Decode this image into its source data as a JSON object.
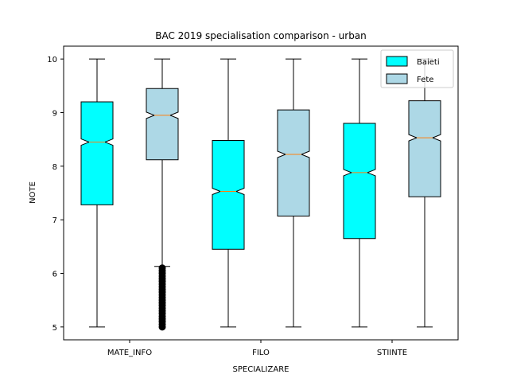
{
  "chart_data": {
    "type": "boxplot",
    "title": "BAC 2019 specialisation comparison - urban",
    "xlabel": "SPECIALIZARE",
    "ylabel": "NOTE",
    "categories": [
      "MATE_INFO",
      "FILO",
      "STIINTE"
    ],
    "ylim": [
      4.76,
      10.24
    ],
    "yticks": [
      5,
      6,
      7,
      8,
      9,
      10
    ],
    "ytick_labels": [
      "5",
      "6",
      "7",
      "8",
      "9",
      "10"
    ],
    "grid": false,
    "legend_position": "top-right",
    "notched": true,
    "series": [
      {
        "name": "Baieti",
        "color": "#00ffff",
        "boxes": [
          {
            "category": "MATE_INFO",
            "whislo": 5.0,
            "q1": 7.28,
            "med": 8.45,
            "q3": 9.2,
            "whishi": 10.0,
            "outliers": []
          },
          {
            "category": "FILO",
            "whislo": 5.0,
            "q1": 6.45,
            "med": 7.53,
            "q3": 8.48,
            "whishi": 10.0,
            "outliers": []
          },
          {
            "category": "STIINTE",
            "whislo": 5.0,
            "q1": 6.65,
            "med": 7.88,
            "q3": 8.8,
            "whishi": 10.0,
            "outliers": []
          }
        ]
      },
      {
        "name": "Fete",
        "color": "#add8e6",
        "boxes": [
          {
            "category": "MATE_INFO",
            "whislo": 6.13,
            "q1": 8.12,
            "med": 8.95,
            "q3": 9.45,
            "whishi": 10.0,
            "outliers": [
              6.1,
              6.05,
              6.0,
              5.95,
              5.9,
              5.85,
              5.8,
              5.75,
              5.7,
              5.65,
              5.6,
              5.55,
              5.5,
              5.45,
              5.4,
              5.35,
              5.3,
              5.25,
              5.2,
              5.15,
              5.1,
              5.05,
              5.0
            ]
          },
          {
            "category": "FILO",
            "whislo": 5.0,
            "q1": 7.07,
            "med": 8.22,
            "q3": 9.05,
            "whishi": 10.0,
            "outliers": []
          },
          {
            "category": "STIINTE",
            "whislo": 5.0,
            "q1": 7.43,
            "med": 8.53,
            "q3": 9.22,
            "whishi": 10.0,
            "outliers": []
          }
        ]
      }
    ],
    "median_color": "#ff7f0e"
  }
}
